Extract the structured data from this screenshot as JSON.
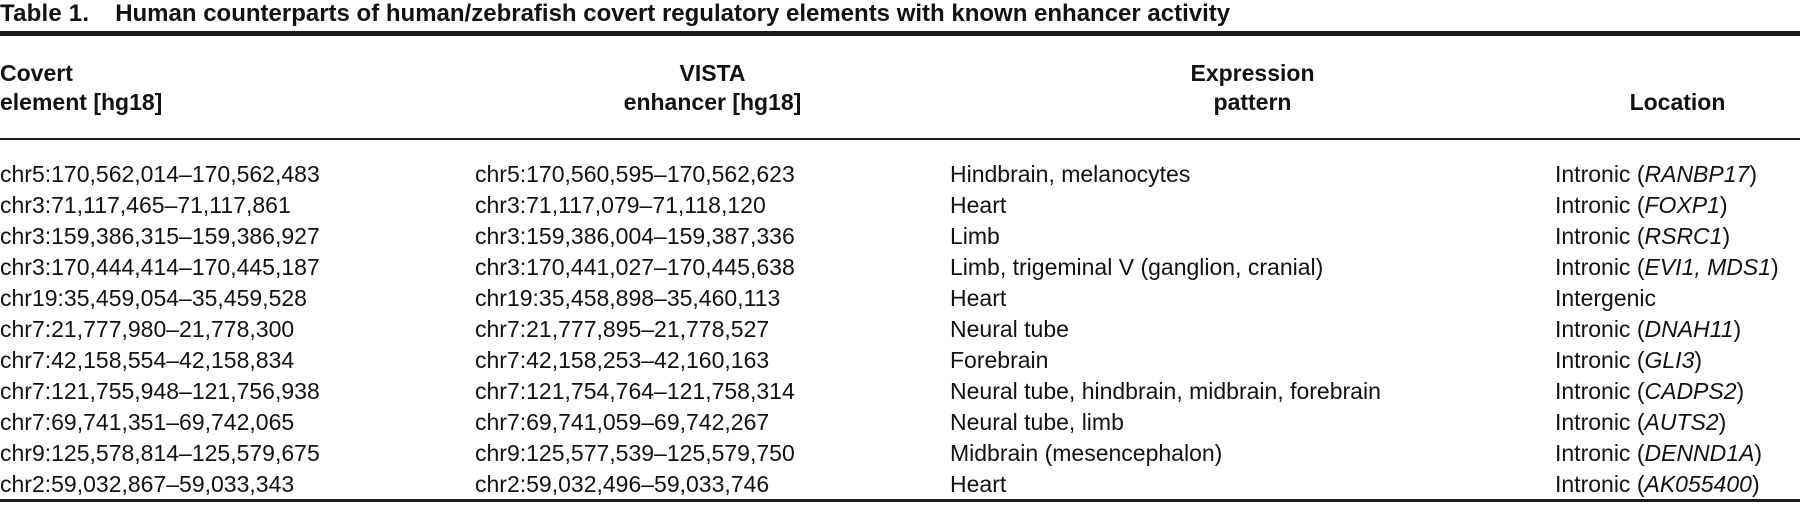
{
  "title": {
    "label": "Table 1.",
    "text": "Human counterparts of human/zebrafish covert regulatory elements with known enhancer activity"
  },
  "headers": [
    {
      "line1": "Covert",
      "line2": "element [hg18]"
    },
    {
      "line1": "VISTA",
      "line2": "enhancer [hg18]"
    },
    {
      "line1": "Expression",
      "line2": "pattern"
    },
    {
      "line1": "",
      "line2": "Location"
    }
  ],
  "colors": {
    "text": "#121212",
    "rule": "#1c1c1c",
    "background": "#ffffff"
  },
  "table": {
    "rows": [
      {
        "covert_element": "chr5:170,562,014–170,562,483",
        "vista_enhancer": "chr5:170,560,595–170,562,623",
        "expression_pattern": "Hindbrain, melanocytes",
        "location": {
          "type": "Intronic",
          "genes": "RANBP17"
        }
      },
      {
        "covert_element": "chr3:71,117,465–71,117,861",
        "vista_enhancer": "chr3:71,117,079–71,118,120",
        "expression_pattern": "Heart",
        "location": {
          "type": "Intronic",
          "genes": "FOXP1"
        }
      },
      {
        "covert_element": "chr3:159,386,315–159,386,927",
        "vista_enhancer": "chr3:159,386,004–159,387,336",
        "expression_pattern": "Limb",
        "location": {
          "type": "Intronic",
          "genes": "RSRC1"
        }
      },
      {
        "covert_element": "chr3:170,444,414–170,445,187",
        "vista_enhancer": "chr3:170,441,027–170,445,638",
        "expression_pattern": "Limb, trigeminal V (ganglion, cranial)",
        "location": {
          "type": "Intronic",
          "genes": "EVI1, MDS1"
        }
      },
      {
        "covert_element": "chr19:35,459,054–35,459,528",
        "vista_enhancer": "chr19:35,458,898–35,460,113",
        "expression_pattern": "Heart",
        "location": {
          "type": "Intergenic",
          "genes": null
        }
      },
      {
        "covert_element": "chr7:21,777,980–21,778,300",
        "vista_enhancer": "chr7:21,777,895–21,778,527",
        "expression_pattern": "Neural tube",
        "location": {
          "type": "Intronic",
          "genes": "DNAH11"
        }
      },
      {
        "covert_element": "chr7:42,158,554–42,158,834",
        "vista_enhancer": "chr7:42,158,253–42,160,163",
        "expression_pattern": "Forebrain",
        "location": {
          "type": "Intronic",
          "genes": "GLI3"
        }
      },
      {
        "covert_element": "chr7:121,755,948–121,756,938",
        "vista_enhancer": "chr7:121,754,764–121,758,314",
        "expression_pattern": "Neural tube, hindbrain, midbrain, forebrain",
        "location": {
          "type": "Intronic",
          "genes": "CADPS2"
        }
      },
      {
        "covert_element": "chr7:69,741,351–69,742,065",
        "vista_enhancer": "chr7:69,741,059–69,742,267",
        "expression_pattern": "Neural tube, limb",
        "location": {
          "type": "Intronic",
          "genes": "AUTS2"
        }
      },
      {
        "covert_element": "chr9:125,578,814–125,579,675",
        "vista_enhancer": "chr9:125,577,539–125,579,750",
        "expression_pattern": "Midbrain (mesencephalon)",
        "location": {
          "type": "Intronic",
          "genes": "DENND1A"
        }
      },
      {
        "covert_element": "chr2:59,032,867–59,033,343",
        "vista_enhancer": "chr2:59,032,496–59,033,746",
        "expression_pattern": "Heart",
        "location": {
          "type": "Intronic",
          "genes": "AK055400"
        }
      }
    ]
  }
}
